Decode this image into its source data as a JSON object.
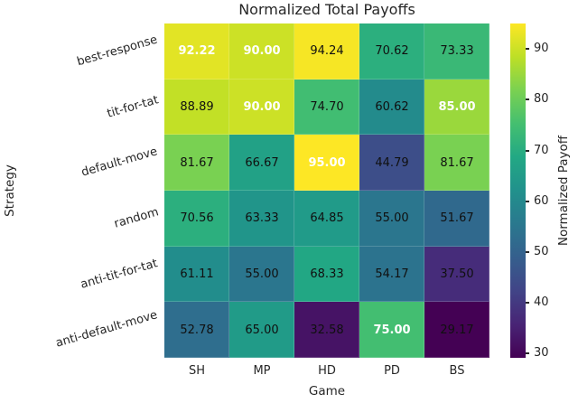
{
  "chart_data": {
    "type": "heatmap",
    "title": "Normalized Total Payoffs",
    "xlabel": "Game",
    "ylabel": "Strategy",
    "x_categories": [
      "SH",
      "MP",
      "HD",
      "PD",
      "BS"
    ],
    "y_categories": [
      "best-response",
      "tit-for-tat",
      "default-move",
      "random",
      "anti-tit-for-tat",
      "anti-default-move"
    ],
    "values": [
      [
        92.22,
        90.0,
        94.24,
        70.62,
        73.33
      ],
      [
        88.89,
        90.0,
        74.7,
        60.62,
        85.0
      ],
      [
        81.67,
        66.67,
        95.0,
        44.79,
        81.67
      ],
      [
        70.56,
        63.33,
        64.85,
        55.0,
        51.67
      ],
      [
        61.11,
        55.0,
        68.33,
        54.17,
        37.5
      ],
      [
        52.78,
        65.0,
        32.58,
        75.0,
        29.17
      ]
    ],
    "value_format": "2-decimals",
    "highlight_rule": "column-max values drawn bold white",
    "colormap": "viridis",
    "colormap_stops": [
      "#440154",
      "#482475",
      "#414487",
      "#355f8d",
      "#2a788e",
      "#21918c",
      "#22a884",
      "#44bf70",
      "#7ad151",
      "#bddf26",
      "#fde725"
    ],
    "vmin": 29.17,
    "vmax": 95.0,
    "colorbar_label": "Normalized Payoff",
    "colorbar_ticks": [
      30,
      40,
      50,
      60,
      70,
      80,
      90
    ],
    "legend_position": "right-colorbar",
    "grid": false,
    "text_colors": {
      "axis_text": "#262626",
      "annotation_dark": "#101010",
      "annotation_light": "#ffffff"
    }
  }
}
